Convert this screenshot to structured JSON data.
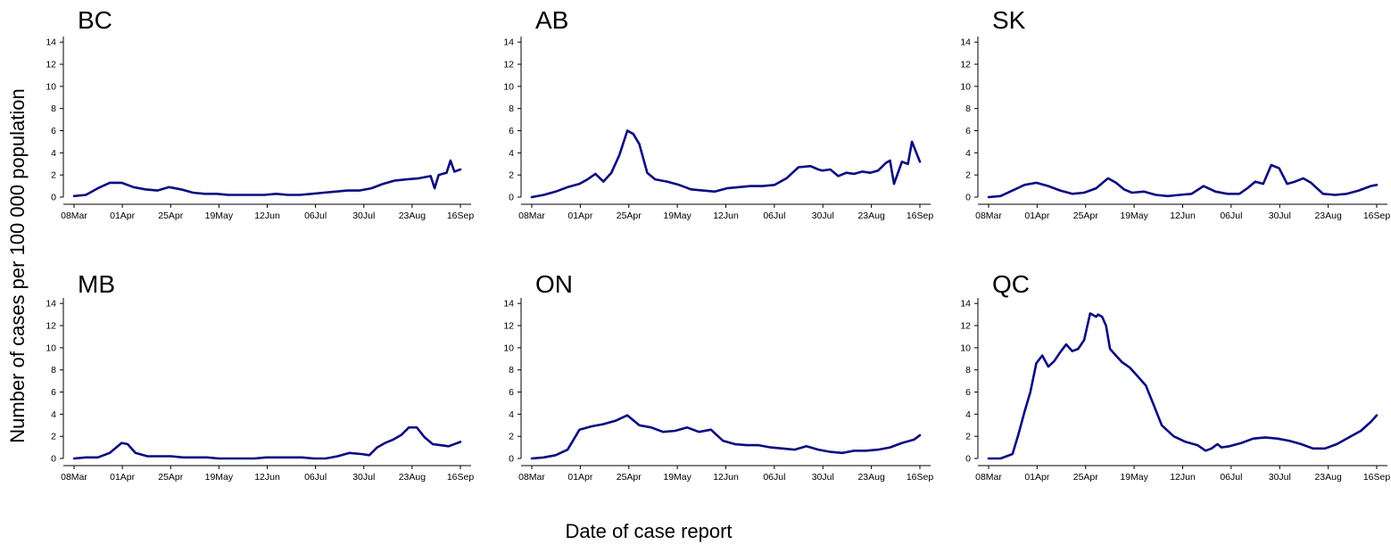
{
  "figure": {
    "ylabel": "Number of cases per 100 000 population",
    "xlabel": "Date of case report",
    "line_color": "#0a0a80"
  },
  "chart_data": [
    {
      "type": "line",
      "title": "BC",
      "x_dates": [
        "2020-03-08",
        "2020-03-14",
        "2020-03-20",
        "2020-03-26",
        "2020-04-01",
        "2020-04-07",
        "2020-04-13",
        "2020-04-19",
        "2020-04-25",
        "2020-05-01",
        "2020-05-07",
        "2020-05-13",
        "2020-05-19",
        "2020-05-25",
        "2020-05-31",
        "2020-06-06",
        "2020-06-12",
        "2020-06-18",
        "2020-06-24",
        "2020-06-30",
        "2020-07-06",
        "2020-07-12",
        "2020-07-18",
        "2020-07-24",
        "2020-07-30",
        "2020-08-05",
        "2020-08-11",
        "2020-08-17",
        "2020-08-23",
        "2020-08-29",
        "2020-09-04",
        "2020-09-06",
        "2020-09-08",
        "2020-09-10",
        "2020-09-12",
        "2020-09-14",
        "2020-09-16",
        "2020-09-19"
      ],
      "values": [
        0.1,
        0.2,
        0.8,
        1.3,
        1.3,
        0.9,
        0.7,
        0.6,
        0.9,
        0.7,
        0.4,
        0.3,
        0.3,
        0.2,
        0.2,
        0.2,
        0.2,
        0.3,
        0.2,
        0.2,
        0.3,
        0.4,
        0.5,
        0.6,
        0.6,
        0.8,
        1.2,
        1.5,
        1.6,
        1.7,
        1.9,
        0.8,
        2.0,
        2.1,
        2.2,
        3.3,
        2.3,
        2.5
      ],
      "ylim": [
        0,
        14.5
      ],
      "yticks": [
        0,
        2,
        4,
        6,
        8,
        10,
        12,
        14
      ],
      "xticks": [
        "08Mar",
        "01Apr",
        "25Apr",
        "19May",
        "12Jun",
        "06Jul",
        "30Jul",
        "23Aug",
        "16Sep"
      ]
    },
    {
      "type": "line",
      "title": "AB",
      "x_dates": [
        "2020-03-08",
        "2020-03-14",
        "2020-03-20",
        "2020-03-26",
        "2020-04-01",
        "2020-04-05",
        "2020-04-09",
        "2020-04-13",
        "2020-04-17",
        "2020-04-21",
        "2020-04-25",
        "2020-04-28",
        "2020-05-01",
        "2020-05-05",
        "2020-05-09",
        "2020-05-15",
        "2020-05-21",
        "2020-05-27",
        "2020-06-02",
        "2020-06-08",
        "2020-06-14",
        "2020-06-20",
        "2020-06-26",
        "2020-07-02",
        "2020-07-08",
        "2020-07-14",
        "2020-07-20",
        "2020-07-26",
        "2020-07-30",
        "2020-08-01",
        "2020-08-05",
        "2020-08-09",
        "2020-08-13",
        "2020-08-17",
        "2020-08-21",
        "2020-08-25",
        "2020-08-29",
        "2020-09-02",
        "2020-09-04",
        "2020-09-06",
        "2020-09-10",
        "2020-09-13",
        "2020-09-15",
        "2020-09-19"
      ],
      "values": [
        0.0,
        0.2,
        0.5,
        0.9,
        1.2,
        1.6,
        2.1,
        1.4,
        2.2,
        3.8,
        6.0,
        5.7,
        4.8,
        2.2,
        1.6,
        1.4,
        1.1,
        0.7,
        0.6,
        0.5,
        0.8,
        0.9,
        1.0,
        1.0,
        1.1,
        1.7,
        2.7,
        2.8,
        2.5,
        2.4,
        2.5,
        1.9,
        2.2,
        2.1,
        2.3,
        2.2,
        2.4,
        3.1,
        3.3,
        1.2,
        3.2,
        3.0,
        5.0,
        3.2
      ],
      "ylim": [
        0,
        14.5
      ],
      "yticks": [
        0,
        2,
        4,
        6,
        8,
        10,
        12,
        14
      ],
      "xticks": [
        "08Mar",
        "01Apr",
        "25Apr",
        "19May",
        "12Jun",
        "06Jul",
        "30Jul",
        "23Aug",
        "16Sep"
      ]
    },
    {
      "type": "line",
      "title": "SK",
      "x_dates": [
        "2020-03-08",
        "2020-03-14",
        "2020-03-20",
        "2020-03-26",
        "2020-04-01",
        "2020-04-07",
        "2020-04-13",
        "2020-04-19",
        "2020-04-25",
        "2020-05-01",
        "2020-05-07",
        "2020-05-11",
        "2020-05-15",
        "2020-05-19",
        "2020-05-25",
        "2020-05-31",
        "2020-06-06",
        "2020-06-12",
        "2020-06-18",
        "2020-06-24",
        "2020-06-30",
        "2020-07-06",
        "2020-07-12",
        "2020-07-16",
        "2020-07-20",
        "2020-07-24",
        "2020-07-28",
        "2020-08-01",
        "2020-08-05",
        "2020-08-09",
        "2020-08-13",
        "2020-08-17",
        "2020-08-23",
        "2020-08-29",
        "2020-09-04",
        "2020-09-10",
        "2020-09-16",
        "2020-09-19"
      ],
      "values": [
        0.0,
        0.1,
        0.6,
        1.1,
        1.3,
        1.0,
        0.6,
        0.3,
        0.4,
        0.8,
        1.7,
        1.3,
        0.7,
        0.4,
        0.5,
        0.2,
        0.1,
        0.2,
        0.3,
        1.0,
        0.5,
        0.3,
        0.3,
        0.8,
        1.4,
        1.2,
        2.9,
        2.6,
        1.2,
        1.4,
        1.7,
        1.3,
        0.3,
        0.2,
        0.3,
        0.6,
        1.0,
        1.1
      ],
      "ylim": [
        0,
        14.5
      ],
      "yticks": [
        0,
        2,
        4,
        6,
        8,
        10,
        12,
        14
      ],
      "xticks": [
        "08Mar",
        "01Apr",
        "25Apr",
        "19May",
        "12Jun",
        "06Jul",
        "30Jul",
        "23Aug",
        "16Sep"
      ]
    },
    {
      "type": "line",
      "title": "MB",
      "x_dates": [
        "2020-03-08",
        "2020-03-14",
        "2020-03-20",
        "2020-03-26",
        "2020-04-01",
        "2020-04-04",
        "2020-04-08",
        "2020-04-14",
        "2020-04-20",
        "2020-04-26",
        "2020-05-02",
        "2020-05-08",
        "2020-05-14",
        "2020-05-20",
        "2020-05-26",
        "2020-06-01",
        "2020-06-07",
        "2020-06-13",
        "2020-06-19",
        "2020-06-25",
        "2020-07-01",
        "2020-07-07",
        "2020-07-13",
        "2020-07-19",
        "2020-07-25",
        "2020-07-31",
        "2020-08-04",
        "2020-08-08",
        "2020-08-12",
        "2020-08-16",
        "2020-08-20",
        "2020-08-24",
        "2020-08-28",
        "2020-09-01",
        "2020-09-05",
        "2020-09-09",
        "2020-09-13",
        "2020-09-19"
      ],
      "values": [
        0.0,
        0.1,
        0.1,
        0.5,
        1.4,
        1.3,
        0.5,
        0.2,
        0.2,
        0.2,
        0.1,
        0.1,
        0.1,
        0.0,
        0.0,
        0.0,
        0.0,
        0.1,
        0.1,
        0.1,
        0.1,
        0.0,
        0.0,
        0.2,
        0.5,
        0.4,
        0.3,
        1.0,
        1.4,
        1.7,
        2.1,
        2.8,
        2.8,
        1.9,
        1.3,
        1.2,
        1.1,
        1.5
      ],
      "ylim": [
        0,
        14.5
      ],
      "yticks": [
        0,
        2,
        4,
        6,
        8,
        10,
        12,
        14
      ],
      "xticks": [
        "08Mar",
        "01Apr",
        "25Apr",
        "19May",
        "12Jun",
        "06Jul",
        "30Jul",
        "23Aug",
        "16Sep"
      ]
    },
    {
      "type": "line",
      "title": "ON",
      "x_dates": [
        "2020-03-08",
        "2020-03-14",
        "2020-03-20",
        "2020-03-26",
        "2020-04-01",
        "2020-04-07",
        "2020-04-13",
        "2020-04-19",
        "2020-04-25",
        "2020-05-01",
        "2020-05-07",
        "2020-05-13",
        "2020-05-19",
        "2020-05-25",
        "2020-05-31",
        "2020-06-06",
        "2020-06-12",
        "2020-06-18",
        "2020-06-24",
        "2020-06-30",
        "2020-07-06",
        "2020-07-12",
        "2020-07-18",
        "2020-07-24",
        "2020-07-30",
        "2020-08-05",
        "2020-08-11",
        "2020-08-17",
        "2020-08-23",
        "2020-08-29",
        "2020-09-04",
        "2020-09-10",
        "2020-09-16",
        "2020-09-19"
      ],
      "values": [
        0.0,
        0.1,
        0.3,
        0.8,
        2.6,
        2.9,
        3.1,
        3.4,
        3.9,
        3.0,
        2.8,
        2.4,
        2.5,
        2.8,
        2.4,
        2.6,
        1.6,
        1.3,
        1.2,
        1.2,
        1.0,
        0.9,
        0.8,
        1.1,
        0.8,
        0.6,
        0.5,
        0.7,
        0.7,
        0.8,
        1.0,
        1.4,
        1.7,
        2.1
      ],
      "ylim": [
        0,
        14.5
      ],
      "yticks": [
        0,
        2,
        4,
        6,
        8,
        10,
        12,
        14
      ],
      "xticks": [
        "08Mar",
        "01Apr",
        "25Apr",
        "19May",
        "12Jun",
        "06Jul",
        "30Jul",
        "23Aug",
        "16Sep"
      ]
    },
    {
      "type": "line",
      "title": "QC",
      "x_dates": [
        "2020-03-08",
        "2020-03-14",
        "2020-03-20",
        "2020-03-23",
        "2020-03-26",
        "2020-03-29",
        "2020-04-01",
        "2020-04-04",
        "2020-04-07",
        "2020-04-10",
        "2020-04-13",
        "2020-04-16",
        "2020-04-19",
        "2020-04-22",
        "2020-04-25",
        "2020-04-28",
        "2020-05-01",
        "2020-05-02",
        "2020-05-04",
        "2020-05-06",
        "2020-05-08",
        "2020-05-10",
        "2020-05-14",
        "2020-05-18",
        "2020-05-22",
        "2020-05-26",
        "2020-05-30",
        "2020-06-03",
        "2020-06-09",
        "2020-06-15",
        "2020-06-21",
        "2020-06-25",
        "2020-06-28",
        "2020-07-01",
        "2020-07-03",
        "2020-07-07",
        "2020-07-13",
        "2020-07-19",
        "2020-07-25",
        "2020-07-31",
        "2020-08-06",
        "2020-08-12",
        "2020-08-18",
        "2020-08-24",
        "2020-08-30",
        "2020-09-05",
        "2020-09-11",
        "2020-09-16",
        "2020-09-19"
      ],
      "values": [
        0.0,
        0.0,
        0.4,
        2.2,
        4.2,
        6.0,
        8.6,
        9.3,
        8.3,
        8.8,
        9.6,
        10.3,
        9.7,
        9.9,
        10.7,
        13.1,
        12.8,
        13.0,
        12.8,
        12.0,
        9.9,
        9.5,
        8.7,
        8.2,
        7.4,
        6.6,
        4.8,
        3.0,
        2.0,
        1.5,
        1.2,
        0.7,
        0.9,
        1.3,
        1.0,
        1.1,
        1.4,
        1.8,
        1.9,
        1.8,
        1.6,
        1.3,
        0.9,
        0.9,
        1.3,
        1.9,
        2.5,
        3.3,
        3.9
      ],
      "ylim": [
        0,
        14.5
      ],
      "yticks": [
        0,
        2,
        4,
        6,
        8,
        10,
        12,
        14
      ],
      "xticks": [
        "08Mar",
        "01Apr",
        "25Apr",
        "19May",
        "12Jun",
        "06Jul",
        "30Jul",
        "23Aug",
        "16Sep"
      ]
    }
  ]
}
